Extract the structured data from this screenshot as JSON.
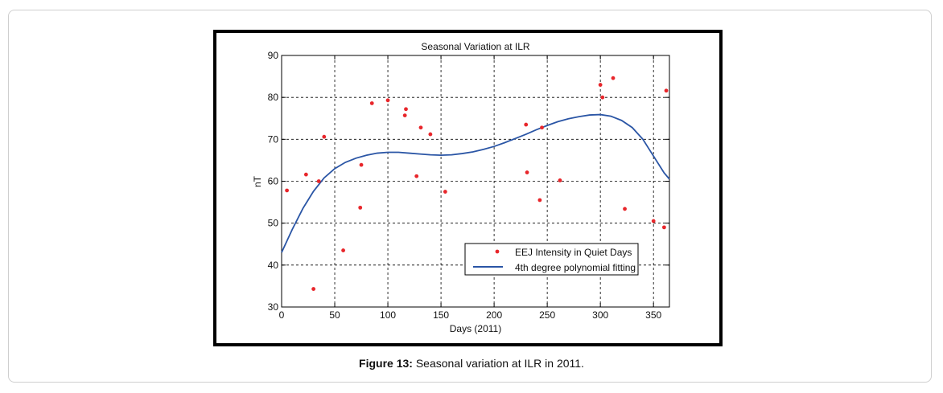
{
  "caption": {
    "label": "Figure 13:",
    "text": " Seasonal variation at ILR in 2011."
  },
  "chart_data": {
    "type": "scatter",
    "title": "Seasonal Variation at ILR",
    "xlabel": "Days (2011)",
    "ylabel": "nT",
    "xlim": [
      0,
      365
    ],
    "ylim": [
      30,
      90
    ],
    "xticks": [
      0,
      50,
      100,
      150,
      200,
      250,
      300,
      350
    ],
    "yticks": [
      30,
      40,
      50,
      60,
      70,
      80,
      90
    ],
    "grid": true,
    "legend_position": "bottom-right",
    "colors": {
      "points": "#e8262b",
      "fit": "#2a55a5"
    },
    "series": [
      {
        "name": "EEJ Intensity in Quiet Days",
        "kind": "points",
        "x": [
          5,
          23,
          30,
          35,
          40,
          58,
          74,
          75,
          85,
          100,
          116,
          117,
          127,
          131,
          140,
          154,
          230,
          231,
          243,
          245,
          262,
          300,
          302,
          312,
          323,
          350,
          360,
          362
        ],
        "y": [
          57.8,
          61.6,
          34.3,
          60.0,
          70.6,
          43.5,
          53.7,
          63.9,
          78.6,
          79.3,
          75.7,
          77.2,
          61.2,
          72.8,
          71.2,
          57.5,
          73.5,
          62.1,
          55.5,
          72.8,
          60.2,
          83.0,
          80.0,
          84.6,
          53.4,
          50.5,
          49.0,
          81.6
        ]
      },
      {
        "name": "4th degree polynomial fitting",
        "kind": "line",
        "x": [
          0,
          10,
          20,
          30,
          40,
          50,
          60,
          70,
          80,
          90,
          100,
          110,
          120,
          130,
          140,
          150,
          160,
          170,
          180,
          190,
          200,
          210,
          220,
          230,
          240,
          250,
          260,
          270,
          280,
          290,
          300,
          310,
          320,
          330,
          340,
          350,
          360,
          365
        ],
        "y": [
          43.0,
          48.5,
          53.5,
          57.6,
          60.8,
          63.0,
          64.5,
          65.5,
          66.2,
          66.7,
          66.9,
          66.9,
          66.7,
          66.5,
          66.3,
          66.2,
          66.3,
          66.6,
          67.0,
          67.6,
          68.3,
          69.2,
          70.2,
          71.2,
          72.3,
          73.3,
          74.2,
          74.9,
          75.4,
          75.8,
          75.9,
          75.5,
          74.5,
          72.8,
          70.0,
          66.0,
          62.0,
          60.5
        ]
      }
    ]
  }
}
